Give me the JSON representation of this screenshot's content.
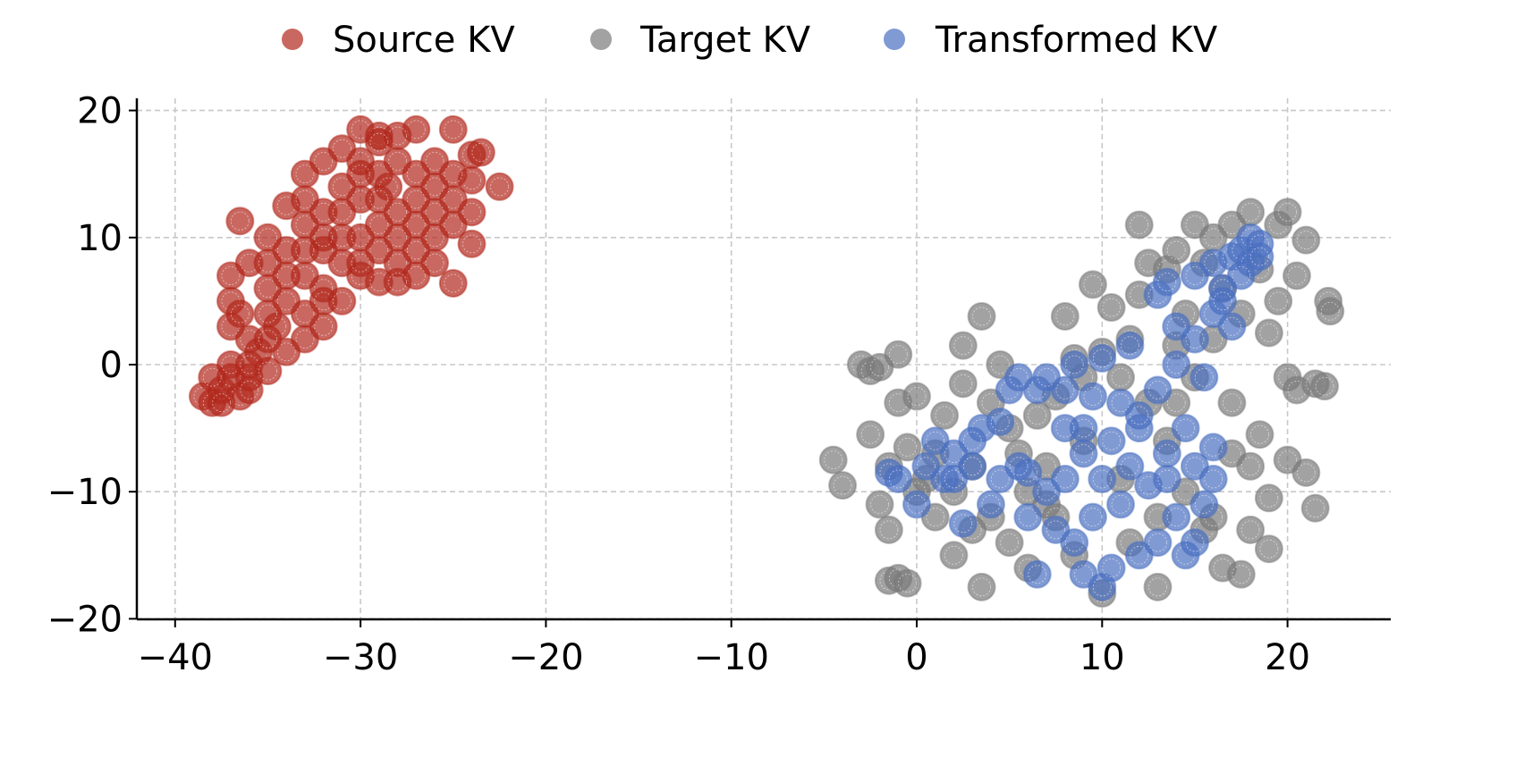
{
  "chart_data": {
    "type": "scatter",
    "title": "",
    "xlabel": "",
    "ylabel": "",
    "xlim": [
      -42,
      25.5
    ],
    "ylim": [
      -20,
      21
    ],
    "xticks": [
      -40,
      -30,
      -20,
      -10,
      0,
      10,
      20
    ],
    "yticks": [
      -20,
      -10,
      0,
      10,
      20
    ],
    "xtick_labels": [
      "−40",
      "−30",
      "−20",
      "−10",
      "0",
      "10",
      "20"
    ],
    "ytick_labels": [
      "−20",
      "−10",
      "0",
      "10",
      "20"
    ],
    "grid": true,
    "legend_placement": "top-center-outside",
    "series": [
      {
        "name": "Source KV",
        "color": "#b2281c",
        "points": [
          [
            -38.5,
            -2.5
          ],
          [
            -38,
            -3
          ],
          [
            -37.5,
            -2
          ],
          [
            -37,
            -1
          ],
          [
            -36.5,
            -2.5
          ],
          [
            -38,
            -1
          ],
          [
            -37,
            0
          ],
          [
            -36,
            -1
          ],
          [
            -35.5,
            1
          ],
          [
            -36,
            2
          ],
          [
            -37,
            3
          ],
          [
            -37,
            5
          ],
          [
            -36.5,
            4
          ],
          [
            -37,
            7
          ],
          [
            -36,
            8
          ],
          [
            -36.5,
            11.3
          ],
          [
            -35,
            6
          ],
          [
            -34.5,
            3
          ],
          [
            -34,
            5
          ],
          [
            -35,
            8
          ],
          [
            -34,
            9
          ],
          [
            -33,
            7
          ],
          [
            -33,
            4
          ],
          [
            -32,
            6
          ],
          [
            -32,
            9
          ],
          [
            -31,
            8
          ],
          [
            -33,
            11
          ],
          [
            -32,
            12
          ],
          [
            -34,
            12.5
          ],
          [
            -33,
            15
          ],
          [
            -32,
            16
          ],
          [
            -31,
            17
          ],
          [
            -30,
            18.5
          ],
          [
            -29,
            18
          ],
          [
            -30,
            16
          ],
          [
            -31,
            14
          ],
          [
            -30,
            13
          ],
          [
            -29,
            15
          ],
          [
            -28,
            16
          ],
          [
            -27,
            18.5
          ],
          [
            -28.5,
            14
          ],
          [
            -27,
            15
          ],
          [
            -26,
            16
          ],
          [
            -25,
            18.5
          ],
          [
            -24,
            16.5
          ],
          [
            -22.5,
            14
          ],
          [
            -24,
            14.5
          ],
          [
            -25,
            13
          ],
          [
            -26,
            12
          ],
          [
            -27,
            11
          ],
          [
            -28,
            10
          ],
          [
            -29,
            9
          ],
          [
            -30,
            7
          ],
          [
            -29,
            6.5
          ],
          [
            -28,
            8
          ],
          [
            -27,
            9
          ],
          [
            -26,
            10
          ],
          [
            -25,
            11
          ],
          [
            -24,
            12
          ],
          [
            -24,
            9.5
          ],
          [
            -25,
            6.4
          ],
          [
            -26,
            8
          ],
          [
            -27,
            7
          ],
          [
            -28,
            6.5
          ],
          [
            -31,
            10
          ],
          [
            -30,
            10
          ],
          [
            -29,
            11
          ],
          [
            -32,
            5
          ],
          [
            -33,
            2
          ],
          [
            -34,
            1
          ],
          [
            -35,
            2
          ],
          [
            -31,
            5
          ],
          [
            -30,
            8
          ],
          [
            -33,
            9
          ],
          [
            -35,
            4
          ],
          [
            -34,
            7
          ],
          [
            -32,
            3
          ],
          [
            -36,
            0
          ],
          [
            -29,
            13
          ],
          [
            -31,
            12
          ],
          [
            -30,
            15
          ],
          [
            -28,
            18
          ],
          [
            -26,
            14
          ],
          [
            -25,
            15
          ],
          [
            -23.5,
            16.7
          ],
          [
            -29,
            17.5
          ],
          [
            -33,
            13
          ],
          [
            -32,
            10
          ],
          [
            -27,
            13
          ],
          [
            -28,
            12
          ],
          [
            -35,
            10
          ],
          [
            -37.5,
            -3
          ],
          [
            -36,
            -2
          ],
          [
            -35,
            -0.5
          ]
        ]
      },
      {
        "name": "Target KV",
        "color": "#7a7a7a",
        "points": [
          [
            -4.5,
            -7.5
          ],
          [
            -4,
            -9.5
          ],
          [
            -3,
            0
          ],
          [
            -2.5,
            -0.5
          ],
          [
            -2,
            -0.2
          ],
          [
            -1,
            0.8
          ],
          [
            -1.5,
            -17
          ],
          [
            -1,
            -16.8
          ],
          [
            -0.5,
            -17.2
          ],
          [
            -2.5,
            -5.5
          ],
          [
            -2,
            -11
          ],
          [
            -1.5,
            -13
          ],
          [
            -1,
            -3
          ],
          [
            -0.5,
            -6.5
          ],
          [
            0,
            -2.5
          ],
          [
            0.5,
            -9
          ],
          [
            1,
            -12
          ],
          [
            1.5,
            -4
          ],
          [
            2,
            -15
          ],
          [
            2.5,
            1.5
          ],
          [
            2.5,
            -1.5
          ],
          [
            3,
            -8
          ],
          [
            3.5,
            -17.5
          ],
          [
            3.5,
            3.8
          ],
          [
            4,
            -3
          ],
          [
            4,
            -12
          ],
          [
            4.5,
            0
          ],
          [
            5,
            -14
          ],
          [
            5.5,
            -7
          ],
          [
            6,
            -16
          ],
          [
            6.5,
            -4
          ],
          [
            7,
            -11
          ],
          [
            7.5,
            -12
          ],
          [
            7.5,
            -2.5
          ],
          [
            8,
            3.8
          ],
          [
            8.5,
            0.5
          ],
          [
            8.5,
            -15
          ],
          [
            9,
            -6
          ],
          [
            9.5,
            6.3
          ],
          [
            10,
            -18
          ],
          [
            10,
            1
          ],
          [
            10.5,
            4.5
          ],
          [
            11,
            -9
          ],
          [
            11.5,
            -14
          ],
          [
            11.5,
            2
          ],
          [
            12,
            5.5
          ],
          [
            12.5,
            8
          ],
          [
            12.5,
            -3
          ],
          [
            13,
            -17.5
          ],
          [
            13.5,
            7.5
          ],
          [
            13.5,
            -6
          ],
          [
            14,
            1.5
          ],
          [
            14.5,
            -10
          ],
          [
            14.5,
            4
          ],
          [
            15,
            11
          ],
          [
            15.5,
            -13
          ],
          [
            15.5,
            8
          ],
          [
            16,
            10
          ],
          [
            16,
            2
          ],
          [
            16.5,
            -16
          ],
          [
            16.5,
            6
          ],
          [
            17,
            11
          ],
          [
            17,
            -7
          ],
          [
            17.5,
            -16.5
          ],
          [
            17.5,
            4
          ],
          [
            18,
            12
          ],
          [
            18,
            -13
          ],
          [
            18.5,
            7.5
          ],
          [
            18.5,
            -5.5
          ],
          [
            19,
            2.5
          ],
          [
            19,
            -10.5
          ],
          [
            19,
            -14.5
          ],
          [
            19.5,
            11
          ],
          [
            19.5,
            5
          ],
          [
            20,
            -7.5
          ],
          [
            20,
            -1
          ],
          [
            20,
            12
          ],
          [
            20.5,
            7
          ],
          [
            20.5,
            -2
          ],
          [
            21,
            9.8
          ],
          [
            21,
            -8.5
          ],
          [
            21.5,
            -1.5
          ],
          [
            21.5,
            -11.3
          ],
          [
            22,
            -1.7
          ],
          [
            22.2,
            5
          ],
          [
            22.3,
            4.2
          ],
          [
            15,
            -1
          ],
          [
            14,
            -3
          ],
          [
            11,
            -1
          ],
          [
            9,
            -1
          ],
          [
            7,
            -8
          ],
          [
            6,
            -10
          ],
          [
            5,
            -5
          ],
          [
            3,
            -13
          ],
          [
            2,
            -10
          ],
          [
            1,
            -7
          ],
          [
            0,
            -10
          ],
          [
            -1.5,
            -8
          ],
          [
            13,
            -12
          ],
          [
            16,
            -12
          ],
          [
            17,
            -3
          ],
          [
            18,
            -8
          ],
          [
            12,
            11
          ],
          [
            14,
            9
          ]
        ]
      },
      {
        "name": "Transformed KV",
        "color": "#4a6fc0",
        "points": [
          [
            -1.5,
            -8.5
          ],
          [
            -1,
            -9
          ],
          [
            0,
            -11
          ],
          [
            0.5,
            -8
          ],
          [
            1,
            -6
          ],
          [
            1.5,
            -9
          ],
          [
            2,
            -7
          ],
          [
            2.5,
            -12.5
          ],
          [
            3,
            -8
          ],
          [
            3.5,
            -5
          ],
          [
            4,
            -11
          ],
          [
            4.5,
            -4.5
          ],
          [
            4.5,
            -9
          ],
          [
            5,
            -2
          ],
          [
            5.5,
            -1
          ],
          [
            6,
            -8.5
          ],
          [
            6,
            -12
          ],
          [
            6.5,
            -2
          ],
          [
            6.5,
            -16.5
          ],
          [
            7,
            -1
          ],
          [
            7.5,
            -13
          ],
          [
            8,
            -2
          ],
          [
            8,
            -9
          ],
          [
            8.5,
            0
          ],
          [
            8.5,
            -14
          ],
          [
            9,
            -5
          ],
          [
            9,
            -16.5
          ],
          [
            9.5,
            -2.5
          ],
          [
            9.5,
            -12
          ],
          [
            10,
            -17.5
          ],
          [
            10,
            -9
          ],
          [
            10,
            0.5
          ],
          [
            10.5,
            -6
          ],
          [
            10.5,
            -16
          ],
          [
            11,
            -11
          ],
          [
            11.5,
            -8
          ],
          [
            11.5,
            1.5
          ],
          [
            12,
            -5
          ],
          [
            12,
            -15
          ],
          [
            12.5,
            -9.5
          ],
          [
            13,
            -2
          ],
          [
            13,
            -14
          ],
          [
            13,
            5.5
          ],
          [
            13.5,
            -7
          ],
          [
            13.5,
            6.5
          ],
          [
            14,
            -12
          ],
          [
            14,
            0
          ],
          [
            14,
            3
          ],
          [
            14.5,
            -15
          ],
          [
            14.5,
            -5
          ],
          [
            15,
            2
          ],
          [
            15,
            -8
          ],
          [
            15,
            7
          ],
          [
            15.5,
            -1
          ],
          [
            15.5,
            -11
          ],
          [
            16,
            4
          ],
          [
            16,
            -6.5
          ],
          [
            16,
            8
          ],
          [
            16.5,
            6
          ],
          [
            17,
            8.5
          ],
          [
            17,
            3
          ],
          [
            17.5,
            9
          ],
          [
            18,
            8
          ],
          [
            18,
            10
          ],
          [
            18.5,
            9.5
          ],
          [
            18.5,
            8.5
          ],
          [
            17.5,
            7
          ],
          [
            16.5,
            5
          ],
          [
            15,
            -14
          ],
          [
            12,
            -4
          ],
          [
            11,
            -3
          ],
          [
            7,
            -10
          ],
          [
            5.5,
            -8
          ],
          [
            3,
            -6
          ],
          [
            2,
            -9
          ],
          [
            8,
            -5
          ],
          [
            9,
            -7
          ],
          [
            13.5,
            -9
          ],
          [
            16,
            -9
          ]
        ]
      }
    ]
  }
}
